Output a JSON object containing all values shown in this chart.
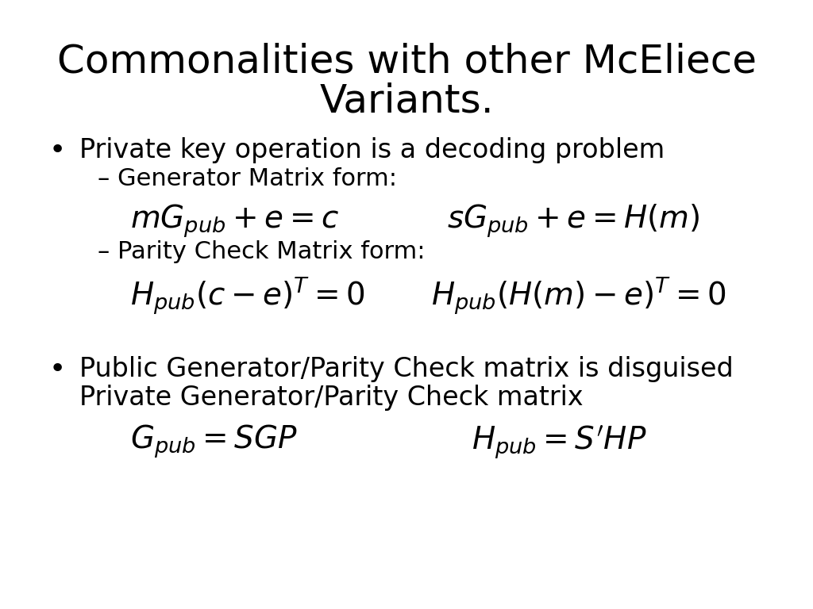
{
  "title_line1": "Commonalities with other McEliece",
  "title_line2": "Variants.",
  "title_fontsize": 36,
  "body_fontsize": 24,
  "sub_fontsize": 22,
  "eq_fontsize": 28,
  "background_color": "#ffffff",
  "text_color": "#000000",
  "bullet1_text": "Private key operation is a decoding problem",
  "sub1_text": "– Generator Matrix form:",
  "sub2_text": "– Parity Check Matrix form:",
  "bullet2_line1": "Public Generator/Parity Check matrix is disguised",
  "bullet2_line2": "Private Generator/Parity Check matrix",
  "eq1_left": "$mG_{pub} + e = c$",
  "eq1_right": "$sG_{pub} + e = H(m)$",
  "eq2_left": "$H_{pub}(c - e)^T = 0$",
  "eq2_right": "$H_{pub}(H(m) - e)^T = 0$",
  "eq3_left": "$G_{pub} = SGP$",
  "eq3_right": "$H_{pub} = S'HP$"
}
